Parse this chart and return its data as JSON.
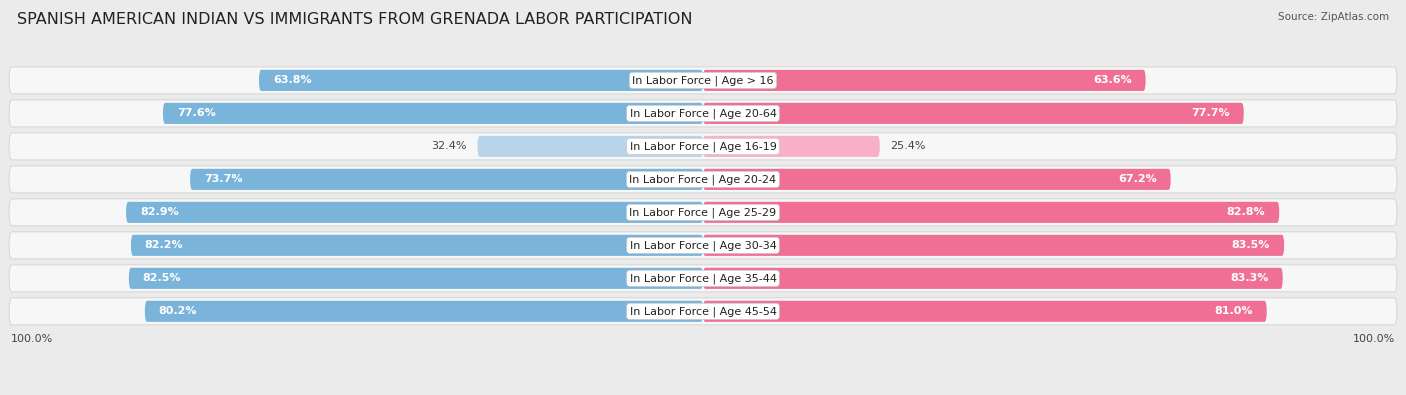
{
  "title": "SPANISH AMERICAN INDIAN VS IMMIGRANTS FROM GRENADA LABOR PARTICIPATION",
  "source": "Source: ZipAtlas.com",
  "categories": [
    "In Labor Force | Age > 16",
    "In Labor Force | Age 20-64",
    "In Labor Force | Age 16-19",
    "In Labor Force | Age 20-24",
    "In Labor Force | Age 25-29",
    "In Labor Force | Age 30-34",
    "In Labor Force | Age 35-44",
    "In Labor Force | Age 45-54"
  ],
  "left_values": [
    63.8,
    77.6,
    32.4,
    73.7,
    82.9,
    82.2,
    82.5,
    80.2
  ],
  "right_values": [
    63.6,
    77.7,
    25.4,
    67.2,
    82.8,
    83.5,
    83.3,
    81.0
  ],
  "left_color": "#7ab4db",
  "right_color": "#f07095",
  "left_color_light": "#b8d4ea",
  "right_color_light": "#f8b0c8",
  "left_label": "Spanish American Indian",
  "right_label": "Immigrants from Grenada",
  "bg_color": "#ebebeb",
  "pill_color": "#f7f7f7",
  "pill_edge_color": "#d8d8d8",
  "max_val": 100.0,
  "title_fontsize": 11.5,
  "label_fontsize": 8,
  "value_fontsize": 8,
  "legend_fontsize": 9,
  "axis_label_fontsize": 8
}
